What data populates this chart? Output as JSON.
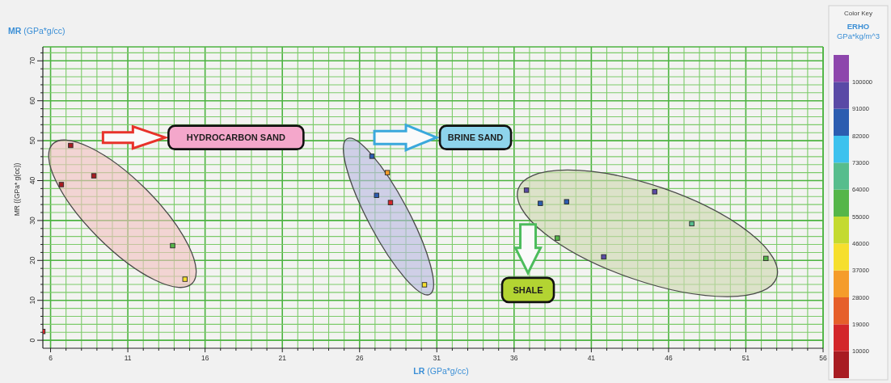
{
  "chart_data": {
    "type": "scatter",
    "title": "MR (GPa*g/cc)",
    "xlabel": "LR (GPa*g/cc)",
    "ylabel": "MR ((GPa* g(cc))",
    "clabel": "ERHO\nGPa*kg/m^3",
    "annotations": [
      "HYDROCARBON SAND",
      "BRINE SAND",
      "SHALE",
      "Color Key"
    ],
    "x": [
      5.5,
      7.3,
      6.7,
      8.8,
      13.9,
      14.7,
      26.8,
      27.8,
      27.1,
      28.0,
      30.2,
      36.8,
      37.7,
      39.4,
      38.8,
      41.8,
      45.1,
      47.5,
      52.3
    ],
    "values": [
      2.2,
      48.8,
      39.0,
      41.2,
      23.7,
      15.3,
      46.1,
      42.0,
      36.3,
      34.5,
      13.9,
      37.6,
      34.3,
      34.7,
      25.6,
      20.9,
      37.2,
      29.2,
      20.5
    ],
    "cvalues": [
      14500,
      5500,
      5500,
      5500,
      59500,
      41500,
      86500,
      32500,
      86500,
      14500,
      41500,
      95500,
      86500,
      86500,
      59500,
      95500,
      95500,
      68500,
      59500
    ],
    "marker": "square",
    "xlim": [
      5.5,
      56
    ],
    "xticks": [
      6,
      {
        "value": 7,
        "label": null
      },
      {
        "value": 8,
        "label": null
      },
      {
        "value": 9,
        "label": null
      },
      {
        "value": 10,
        "label": null
      },
      11,
      {
        "value": 12,
        "label": null
      },
      {
        "value": 13,
        "label": null
      },
      {
        "value": 14,
        "label": null
      },
      {
        "value": 15,
        "label": null
      },
      16,
      {
        "value": 17,
        "label": null
      },
      {
        "value": 18,
        "label": null
      },
      {
        "value": 19,
        "label": null
      },
      {
        "value": 20,
        "label": null
      },
      21,
      {
        "value": 22,
        "label": null
      },
      {
        "value": 23,
        "label": null
      },
      {
        "value": 24,
        "label": null
      },
      {
        "value": 25,
        "label": null
      },
      26,
      {
        "value": 27,
        "label": null
      },
      {
        "value": 28,
        "label": null
      },
      {
        "value": 29,
        "label": null
      },
      {
        "value": 30,
        "label": null
      },
      31,
      {
        "value": 32,
        "label": null
      },
      {
        "value": 33,
        "label": null
      },
      {
        "value": 34,
        "label": null
      },
      {
        "value": 35,
        "label": null
      },
      36,
      {
        "value": 37,
        "label": null
      },
      {
        "value": 38,
        "label": null
      },
      {
        "value": 39,
        "label": null
      },
      {
        "value": 40,
        "label": null
      },
      41,
      {
        "value": 42,
        "label": null
      },
      {
        "value": 43,
        "label": null
      },
      {
        "value": 44,
        "label": null
      },
      {
        "value": 45,
        "label": null
      },
      46,
      {
        "value": 47,
        "label": null
      },
      {
        "value": 48,
        "label": null
      },
      {
        "value": 49,
        "label": null
      },
      {
        "value": 50,
        "label": null
      },
      51,
      {
        "value": 52,
        "label": null
      },
      {
        "value": 53,
        "label": null
      },
      {
        "value": 54,
        "label": null
      },
      {
        "value": 55,
        "label": null
      },
      56
    ],
    "ylim": [
      -2,
      73.5
    ],
    "yticks": [
      0,
      {
        "value": 2,
        "label": null
      },
      {
        "value": 4,
        "label": null
      },
      {
        "value": 6,
        "label": null
      },
      {
        "value": 8,
        "label": null
      },
      10,
      {
        "value": 12,
        "label": null
      },
      {
        "value": 14,
        "label": null
      },
      {
        "value": 16,
        "label": null
      },
      {
        "value": 18,
        "label": null
      },
      20,
      {
        "value": 22,
        "label": null
      },
      {
        "value": 24,
        "label": null
      },
      {
        "value": 26,
        "label": null
      },
      {
        "value": 28,
        "label": null
      },
      30,
      {
        "value": 32,
        "label": null
      },
      {
        "value": 34,
        "label": null
      },
      {
        "value": 36,
        "label": null
      },
      {
        "value": 38,
        "label": null
      },
      40,
      {
        "value": 42,
        "label": null
      },
      {
        "value": 44,
        "label": null
      },
      {
        "value": 46,
        "label": null
      },
      {
        "value": 48,
        "label": null
      },
      50,
      {
        "value": 52,
        "label": null
      },
      {
        "value": 54,
        "label": null
      },
      {
        "value": 56,
        "label": null
      },
      {
        "value": 58,
        "label": null
      },
      60,
      {
        "value": 62,
        "label": null
      },
      {
        "value": 64,
        "label": null
      },
      {
        "value": 66,
        "label": null
      },
      {
        "value": 68,
        "label": null
      },
      70,
      {
        "value": 72,
        "label": null
      }
    ],
    "clim": [
      1000,
      109000
    ],
    "cticks": [
      10000,
      19000,
      28000,
      37000,
      46000,
      55000,
      64000,
      73000,
      82000,
      91000,
      100000
    ],
    "grid": true
  }
}
